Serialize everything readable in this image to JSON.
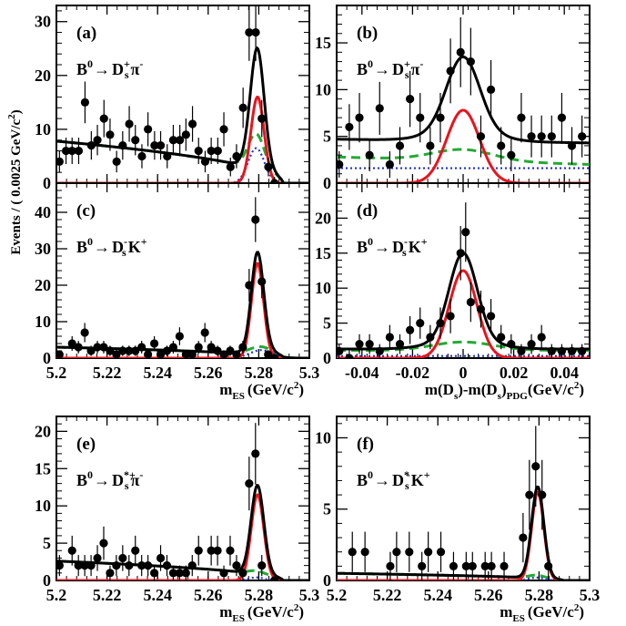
{
  "figure": {
    "ylabel": "Events / ( 0.0025 GeV/c",
    "ylabel_sup": "2",
    "ylabel_close": ")"
  },
  "chart_data": [
    {
      "id": "a",
      "type": "scatter",
      "label": "(a)",
      "decay": {
        "B": "B",
        "Bsup": "0",
        "arrow": "→",
        "D": "D",
        "Dsub": "s",
        "Dsup": "+",
        "P": "π",
        "Psup": "-"
      },
      "xlim": [
        5.2,
        5.3
      ],
      "ylim": [
        0,
        33
      ],
      "xticks": [
        5.2,
        5.22,
        5.24,
        5.26,
        5.28,
        5.3
      ],
      "yticks": [
        0,
        10,
        20,
        30
      ],
      "show_xticklabels": false,
      "xlabel": null,
      "data": [
        [
          5.2012,
          4
        ],
        [
          5.2038,
          6
        ],
        [
          5.2062,
          6
        ],
        [
          5.2088,
          6
        ],
        [
          5.2113,
          15
        ],
        [
          5.2138,
          7
        ],
        [
          5.2162,
          8
        ],
        [
          5.2188,
          12
        ],
        [
          5.2212,
          9
        ],
        [
          5.2238,
          4
        ],
        [
          5.2262,
          7
        ],
        [
          5.2288,
          11
        ],
        [
          5.2312,
          8
        ],
        [
          5.2338,
          5
        ],
        [
          5.2362,
          10
        ],
        [
          5.2388,
          7
        ],
        [
          5.2412,
          7
        ],
        [
          5.2438,
          5
        ],
        [
          5.2462,
          8
        ],
        [
          5.2488,
          8
        ],
        [
          5.2512,
          9
        ],
        [
          5.2538,
          11
        ],
        [
          5.2562,
          6
        ],
        [
          5.2588,
          4
        ],
        [
          5.2612,
          6
        ],
        [
          5.2638,
          6
        ],
        [
          5.2662,
          10
        ],
        [
          5.2688,
          3
        ],
        [
          5.2712,
          5
        ],
        [
          5.2738,
          14
        ],
        [
          5.2762,
          28
        ],
        [
          5.2788,
          28
        ],
        [
          5.2812,
          12
        ],
        [
          5.2838,
          3
        ],
        [
          5.2862,
          0
        ]
      ],
      "model": {
        "bkg_amp": 7.8,
        "bkg_end": 5.2895,
        "bkg_p": 0.5,
        "sig_mu": 5.2795,
        "sig_sigma": 0.0026,
        "sig_amp": 16,
        "peaking_amp": 6.5,
        "peaking_mu": 5.279,
        "peaking_sigma": 0.0032
      }
    },
    {
      "id": "b",
      "type": "scatter",
      "label": "(b)",
      "decay": {
        "B": "B",
        "Bsup": "0",
        "arrow": "→",
        "D": "D",
        "Dsub": "s",
        "Dsup": "+",
        "P": "π",
        "Psup": "-"
      },
      "xlim": [
        -0.05,
        0.05
      ],
      "ylim": [
        0,
        19
      ],
      "xticks": [
        -0.04,
        -0.02,
        0,
        0.02,
        0.04
      ],
      "yticks": [
        0,
        5,
        10,
        15
      ],
      "show_xticklabels": false,
      "xlabel": null,
      "data": [
        [
          -0.049,
          2
        ],
        [
          -0.045,
          6
        ],
        [
          -0.041,
          7
        ],
        [
          -0.037,
          3
        ],
        [
          -0.033,
          8
        ],
        [
          -0.029,
          2
        ],
        [
          -0.025,
          4
        ],
        [
          -0.021,
          9
        ],
        [
          -0.017,
          7
        ],
        [
          -0.013,
          4
        ],
        [
          -0.009,
          7
        ],
        [
          -0.005,
          12
        ],
        [
          -0.001,
          14
        ],
        [
          0.003,
          13
        ],
        [
          0.007,
          5
        ],
        [
          0.011,
          10
        ],
        [
          0.015,
          4
        ],
        [
          0.019,
          3
        ],
        [
          0.023,
          7
        ],
        [
          0.027,
          5
        ],
        [
          0.031,
          5
        ],
        [
          0.035,
          5
        ],
        [
          0.039,
          7
        ],
        [
          0.043,
          4
        ],
        [
          0.047,
          5
        ]
      ],
      "model": {
        "flat": 4.5,
        "slope": -4,
        "dashed": 2.4,
        "dashed_slope": -8,
        "dotted": 1.6,
        "sig_mu": 0,
        "sig_sigma": 0.0065,
        "sig_amp": 7.8,
        "broad_amp": 1.2,
        "broad_sigma": 0.012
      }
    },
    {
      "id": "c",
      "type": "scatter",
      "label": "(c)",
      "decay": {
        "B": "B",
        "Bsup": "0",
        "arrow": "→",
        "D": "D",
        "Dsub": "s",
        "Dsup": "-",
        "P": "K",
        "Psup": "+"
      },
      "xlim": [
        5.2,
        5.3
      ],
      "ylim": [
        0,
        48
      ],
      "xticks": [
        5.2,
        5.22,
        5.24,
        5.26,
        5.28,
        5.3
      ],
      "xticklabels": [
        "5.2",
        "5.22",
        "5.24",
        "5.26",
        "5.28",
        "5.3"
      ],
      "yticks": [
        0,
        10,
        20,
        30,
        40
      ],
      "show_xticklabels": true,
      "xlabel": {
        "main": "m",
        "sub": "ES",
        "unit": "(GeV/c",
        "sup": "2",
        "close": ")"
      },
      "data": [
        [
          5.2012,
          1
        ],
        [
          5.2062,
          4
        ],
        [
          5.2087,
          3
        ],
        [
          5.2112,
          7
        ],
        [
          5.2137,
          2
        ],
        [
          5.2162,
          3
        ],
        [
          5.2187,
          3
        ],
        [
          5.2212,
          2
        ],
        [
          5.2237,
          1
        ],
        [
          5.2262,
          2
        ],
        [
          5.2287,
          2
        ],
        [
          5.2312,
          2
        ],
        [
          5.2337,
          3
        ],
        [
          5.2362,
          1
        ],
        [
          5.2387,
          4
        ],
        [
          5.2412,
          1
        ],
        [
          5.2437,
          2
        ],
        [
          5.2462,
          3
        ],
        [
          5.2487,
          6
        ],
        [
          5.2512,
          1
        ],
        [
          5.2537,
          1
        ],
        [
          5.2562,
          3
        ],
        [
          5.2587,
          7
        ],
        [
          5.2612,
          3
        ],
        [
          5.2637,
          2
        ],
        [
          5.2662,
          1
        ],
        [
          5.2687,
          2
        ],
        [
          5.2712,
          1
        ],
        [
          5.2737,
          3
        ],
        [
          5.2762,
          20
        ],
        [
          5.2787,
          38
        ],
        [
          5.2812,
          21
        ],
        [
          5.2837,
          1
        ],
        [
          5.2862,
          0
        ]
      ],
      "model": {
        "bkg_amp": 3.0,
        "bkg_end": 5.2895,
        "bkg_p": 0.5,
        "sig_mu": 5.2795,
        "sig_sigma": 0.0024,
        "sig_amp": 26,
        "peaking_amp": 2.2,
        "peaking_mu": 5.281,
        "peaking_sigma": 0.0045
      }
    },
    {
      "id": "d",
      "type": "scatter",
      "label": "(d)",
      "decay": {
        "B": "B",
        "Bsup": "0",
        "arrow": "→",
        "D": "D",
        "Dsub": "s",
        "Dsup": "-",
        "P": "K",
        "Psup": "+"
      },
      "xlim": [
        -0.05,
        0.05
      ],
      "ylim": [
        0,
        25
      ],
      "xticks": [
        -0.04,
        -0.02,
        0,
        0.02,
        0.04
      ],
      "xticklabels": [
        "-0.04",
        "-0.02",
        "0",
        "0.02",
        "0.04"
      ],
      "yticks": [
        0,
        5,
        10,
        15,
        20
      ],
      "show_xticklabels": true,
      "xlabel": {
        "main": "m(D",
        "sub1": "s",
        "mid": ")-m(D",
        "sub2": "s",
        "pdg": ")",
        "pdgsub": "PDG",
        "unit": "(GeV/c",
        "sup": "2",
        "close": ")"
      },
      "data": [
        [
          -0.049,
          1
        ],
        [
          -0.045,
          0
        ],
        [
          -0.041,
          2
        ],
        [
          -0.037,
          2
        ],
        [
          -0.033,
          1
        ],
        [
          -0.029,
          3
        ],
        [
          -0.025,
          2
        ],
        [
          -0.021,
          4
        ],
        [
          -0.017,
          5
        ],
        [
          -0.013,
          3
        ],
        [
          -0.009,
          5
        ],
        [
          -0.005,
          6
        ],
        [
          -0.001,
          15
        ],
        [
          0.001,
          18
        ],
        [
          0.003,
          8
        ],
        [
          0.007,
          7
        ],
        [
          0.011,
          6
        ],
        [
          0.015,
          3
        ],
        [
          0.019,
          2
        ],
        [
          0.023,
          1
        ],
        [
          0.027,
          2
        ],
        [
          0.031,
          3
        ],
        [
          0.035,
          1
        ],
        [
          0.039,
          1
        ],
        [
          0.043,
          1
        ],
        [
          0.047,
          1
        ]
      ],
      "model": {
        "flat": 1.3,
        "slope": 0,
        "dashed": 1.1,
        "dashed_slope": 0,
        "dotted": 0.3,
        "sig_mu": 0,
        "sig_sigma": 0.0055,
        "sig_amp": 12.5,
        "broad_amp": 1.2,
        "broad_sigma": 0.012
      }
    },
    {
      "id": "e",
      "type": "scatter",
      "label": "(e)",
      "decay": {
        "B": "B",
        "Bsup": "0",
        "arrow": "→",
        "D": "D",
        "Dsub": "s",
        "Dsup": "*+",
        "P": "π",
        "Psup": "-"
      },
      "xlim": [
        5.2,
        5.3
      ],
      "ylim": [
        0,
        22
      ],
      "xticks": [
        5.2,
        5.22,
        5.24,
        5.26,
        5.28,
        5.3
      ],
      "xticklabels": [
        "5.2",
        "5.22",
        "5.24",
        "5.26",
        "5.28",
        "5.3"
      ],
      "yticks": [
        0,
        5,
        10,
        15,
        20
      ],
      "show_xticklabels": true,
      "xlabel": {
        "main": "m",
        "sub": "ES",
        "unit": "(GeV/c",
        "sup": "2",
        "close": ")"
      },
      "data": [
        [
          5.2012,
          2
        ],
        [
          5.2062,
          4
        ],
        [
          5.2087,
          2
        ],
        [
          5.2112,
          2
        ],
        [
          5.2137,
          2
        ],
        [
          5.2162,
          3
        ],
        [
          5.2187,
          5
        ],
        [
          5.2212,
          1
        ],
        [
          5.2237,
          2
        ],
        [
          5.2262,
          3
        ],
        [
          5.2287,
          2
        ],
        [
          5.2312,
          4
        ],
        [
          5.2337,
          2
        ],
        [
          5.2362,
          2
        ],
        [
          5.2387,
          1
        ],
        [
          5.2412,
          3
        ],
        [
          5.2437,
          2
        ],
        [
          5.2462,
          1
        ],
        [
          5.2487,
          1
        ],
        [
          5.2512,
          1
        ],
        [
          5.2537,
          2
        ],
        [
          5.2562,
          4
        ],
        [
          5.2612,
          4
        ],
        [
          5.2637,
          4
        ],
        [
          5.2662,
          1
        ],
        [
          5.2687,
          4
        ],
        [
          5.2712,
          2
        ],
        [
          5.2737,
          1
        ],
        [
          5.2762,
          13
        ],
        [
          5.2787,
          17
        ],
        [
          5.2812,
          2
        ],
        [
          5.2862,
          0
        ]
      ],
      "model": {
        "bkg_amp": 2.6,
        "bkg_end": 5.2895,
        "bkg_p": 0.5,
        "sig_mu": 5.2795,
        "sig_sigma": 0.0025,
        "sig_amp": 11.5,
        "peaking_amp": 0.4,
        "peaking_mu": 5.279,
        "peaking_sigma": 0.003
      }
    },
    {
      "id": "f",
      "type": "scatter",
      "label": "(f)",
      "decay": {
        "B": "B",
        "Bsup": "0",
        "arrow": "→",
        "D": "D",
        "Dsub": "s",
        "Dsup": "*",
        "Dsub2": "-",
        "P": "K",
        "Psup": "+"
      },
      "xlim": [
        5.2,
        5.3
      ],
      "ylim": [
        0,
        11.5
      ],
      "xticks": [
        5.2,
        5.22,
        5.24,
        5.26,
        5.28,
        5.3
      ],
      "xticklabels": [
        "5.2",
        "5.22",
        "5.24",
        "5.26",
        "5.28",
        "5.3"
      ],
      "yticks": [
        0,
        5,
        10
      ],
      "show_xticklabels": true,
      "xlabel": {
        "main": "m",
        "sub": "ES",
        "unit": "(GeV/c",
        "sup": "2",
        "close": ")"
      },
      "data": [
        [
          5.2062,
          2
        ],
        [
          5.2112,
          2
        ],
        [
          5.2212,
          1
        ],
        [
          5.2237,
          2
        ],
        [
          5.2287,
          2
        ],
        [
          5.2337,
          1
        ],
        [
          5.2362,
          2
        ],
        [
          5.2412,
          2
        ],
        [
          5.2462,
          1
        ],
        [
          5.2512,
          1
        ],
        [
          5.2537,
          1
        ],
        [
          5.2587,
          1
        ],
        [
          5.2612,
          1
        ],
        [
          5.2662,
          1
        ],
        [
          5.2737,
          3
        ],
        [
          5.2762,
          6
        ],
        [
          5.2787,
          8
        ],
        [
          5.2812,
          6
        ],
        [
          5.2837,
          1
        ]
      ],
      "model": {
        "bkg_amp": 0.5,
        "bkg_end": 5.2895,
        "bkg_p": 0.5,
        "sig_mu": 5.2795,
        "sig_sigma": 0.0024,
        "sig_amp": 6.2,
        "peaking_amp": 0.2,
        "peaking_mu": 5.279,
        "peaking_sigma": 0.003
      }
    }
  ],
  "colors": {
    "total": "#000000",
    "signal": "#e8141c",
    "background": "#22aa33",
    "peaking": "#2233cc",
    "marker": "#000000"
  }
}
